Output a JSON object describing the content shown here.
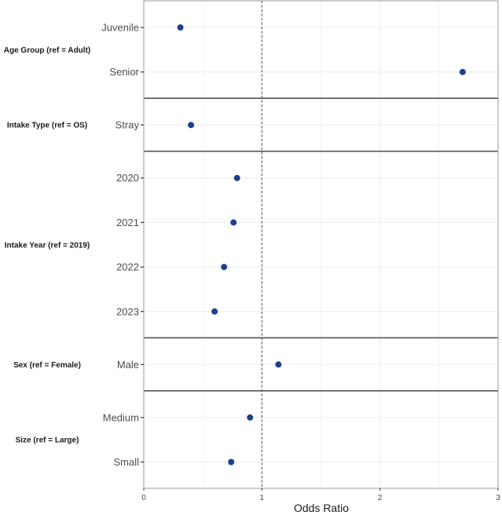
{
  "chart_data": {
    "type": "scatter",
    "title": "",
    "xlabel": "Odds Ratio",
    "ylabel": "",
    "xlim": [
      0,
      3
    ],
    "xticks": [
      0,
      1,
      2,
      3
    ],
    "grid": true,
    "reference_line": {
      "x": 1,
      "style": "dashed"
    },
    "point_color": "#1f3f8f",
    "groups": [
      {
        "label": "Age Group (ref = Adult)",
        "items": [
          {
            "category": "Juvenile",
            "value": 0.31
          },
          {
            "category": "Senior",
            "value": 2.7
          }
        ]
      },
      {
        "label": "Intake Type (ref = OS)",
        "items": [
          {
            "category": "Stray",
            "value": 0.4
          }
        ]
      },
      {
        "label": "Intake Year (ref = 2019)",
        "items": [
          {
            "category": "2020",
            "value": 0.79
          },
          {
            "category": "2021",
            "value": 0.76
          },
          {
            "category": "2022",
            "value": 0.68
          },
          {
            "category": "2023",
            "value": 0.6
          }
        ]
      },
      {
        "label": "Sex (ref = Female)",
        "items": [
          {
            "category": "Male",
            "value": 1.14
          }
        ]
      },
      {
        "label": "Size (ref = Large)",
        "items": [
          {
            "category": "Medium",
            "value": 0.9
          },
          {
            "category": "Small",
            "value": 0.74
          }
        ]
      }
    ]
  }
}
